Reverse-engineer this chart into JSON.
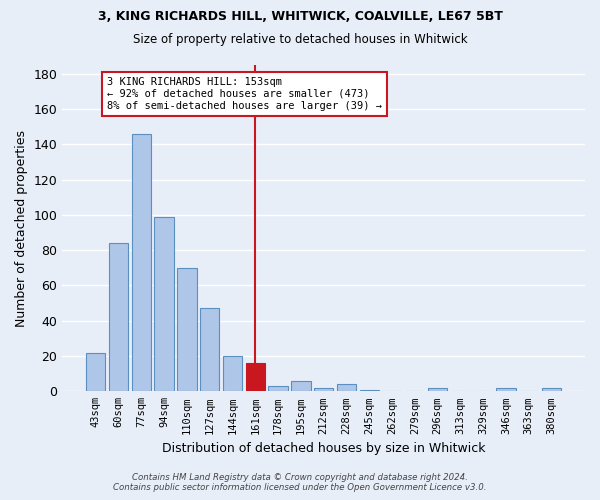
{
  "title1": "3, KING RICHARDS HILL, WHITWICK, COALVILLE, LE67 5BT",
  "title2": "Size of property relative to detached houses in Whitwick",
  "xlabel": "Distribution of detached houses by size in Whitwick",
  "ylabel": "Number of detached properties",
  "categories": [
    "43sqm",
    "60sqm",
    "77sqm",
    "94sqm",
    "110sqm",
    "127sqm",
    "144sqm",
    "161sqm",
    "178sqm",
    "195sqm",
    "212sqm",
    "228sqm",
    "245sqm",
    "262sqm",
    "279sqm",
    "296sqm",
    "313sqm",
    "329sqm",
    "346sqm",
    "363sqm",
    "380sqm"
  ],
  "values": [
    22,
    84,
    146,
    99,
    70,
    47,
    20,
    16,
    3,
    6,
    2,
    4,
    1,
    0,
    0,
    2,
    0,
    0,
    2,
    0,
    2
  ],
  "bar_color": "#aec6e8",
  "bar_edge_color": "#5a8fc2",
  "highlight_bar_index": 7,
  "highlight_bar_color": "#c8171e",
  "highlight_bar_edge_color": "#c8171e",
  "vline_x": 7,
  "vline_color": "#c8171e",
  "ylim": [
    0,
    185
  ],
  "yticks": [
    0,
    20,
    40,
    60,
    80,
    100,
    120,
    140,
    160,
    180
  ],
  "annotation_text": "3 KING RICHARDS HILL: 153sqm\n← 92% of detached houses are smaller (473)\n8% of semi-detached houses are larger (39) →",
  "annotation_box_color": "#ffffff",
  "annotation_box_edge_color": "#c8171e",
  "bg_color": "#e8eef8",
  "grid_color": "#ffffff",
  "footnote": "Contains HM Land Registry data © Crown copyright and database right 2024.\nContains public sector information licensed under the Open Government Licence v3.0.",
  "figsize": [
    6.0,
    5.0
  ],
  "dpi": 100
}
